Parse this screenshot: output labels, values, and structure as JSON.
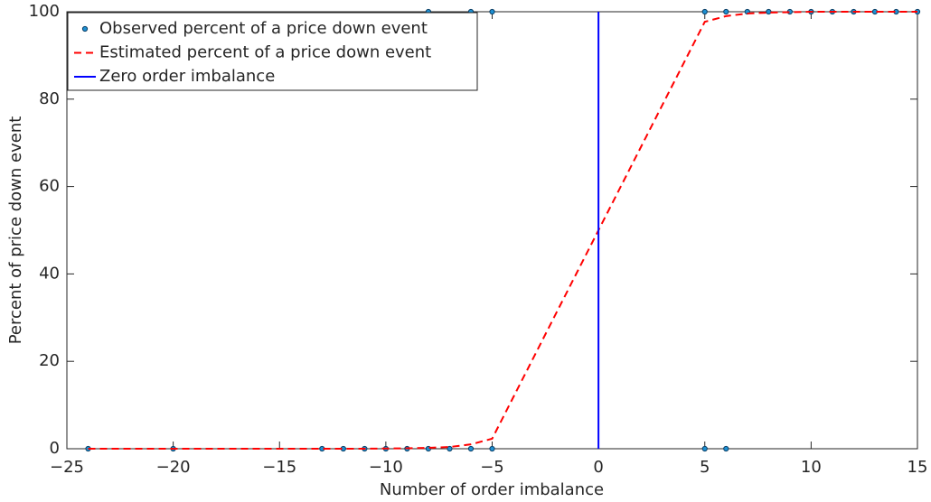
{
  "chart_data": {
    "type": "line",
    "xlabel": "Number of order imbalance",
    "ylabel": "Percent of price down event",
    "xlim": [
      -25,
      15
    ],
    "ylim": [
      0,
      100
    ],
    "xticks": [
      {
        "value": -25,
        "label": "−25"
      },
      {
        "value": -20,
        "label": "−20"
      },
      {
        "value": -15,
        "label": "−15"
      },
      {
        "value": -10,
        "label": "−10"
      },
      {
        "value": -5,
        "label": "−5"
      },
      0,
      5,
      10,
      15
    ],
    "yticks": [
      0,
      20,
      40,
      60,
      80,
      100
    ],
    "grid": false,
    "legend": "upper left",
    "series": [
      {
        "name": "Observed percent of a price down event",
        "kind": "scatter",
        "color": "#1e90d2",
        "x": [
          -24,
          -20,
          -13,
          -12,
          -11,
          -10,
          -9,
          -8,
          -7,
          -6,
          -5,
          5,
          6,
          -8,
          -6,
          -5,
          5,
          6,
          7,
          8,
          9,
          10,
          11,
          12,
          13,
          14,
          15
        ],
        "values": [
          0,
          0,
          0,
          0,
          0,
          0,
          0,
          0,
          0,
          0,
          0,
          0,
          0,
          100,
          100,
          100,
          100,
          100,
          100,
          100,
          100,
          100,
          100,
          100,
          100,
          100,
          100
        ]
      },
      {
        "name": "Estimated percent of a price down event",
        "kind": "dashed",
        "color": "#ff0000",
        "x": [
          -24,
          -20,
          -13,
          -12,
          -11,
          -10,
          -9,
          -8,
          -7,
          -6,
          -5,
          5,
          6,
          7,
          8,
          9,
          10,
          11,
          12,
          13,
          14,
          15
        ],
        "values": [
          0,
          0,
          0,
          0,
          0,
          0.05,
          0.1,
          0.2,
          0.4,
          1,
          2.3,
          97.7,
          99,
          99.6,
          99.8,
          99.9,
          100,
          100,
          100,
          100,
          100,
          100
        ]
      },
      {
        "name": "Zero order imbalance",
        "kind": "solid",
        "color": "#0000ff",
        "x": [
          0,
          0
        ],
        "values": [
          0,
          100
        ]
      }
    ]
  }
}
